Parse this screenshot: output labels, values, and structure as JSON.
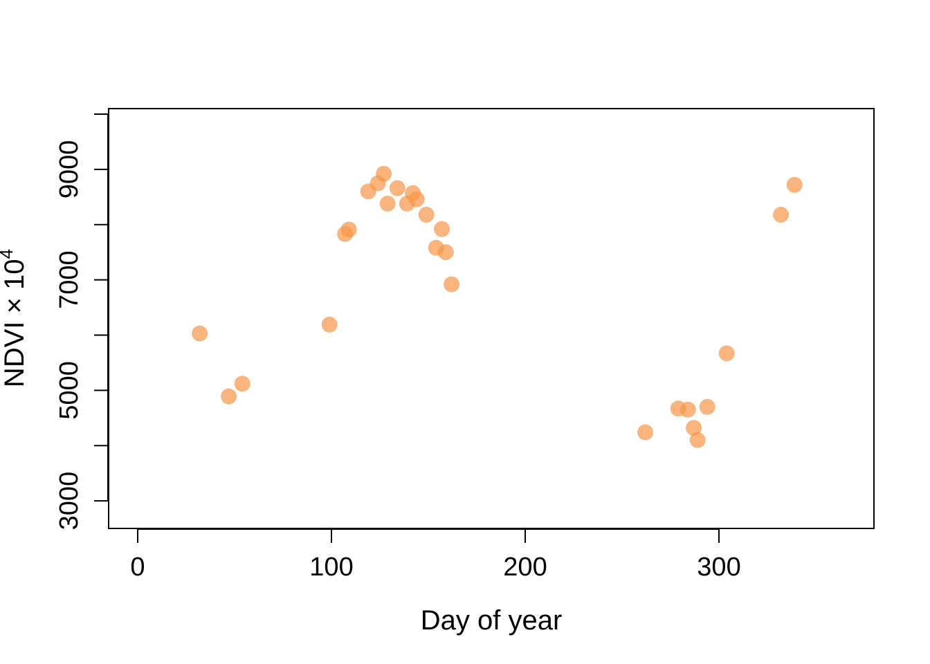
{
  "chart_data": {
    "type": "scatter",
    "title": "",
    "xlabel": "Day of year",
    "ylabel": {
      "main": "NDVI × 10",
      "superscript": "4"
    },
    "xlim": [
      -15,
      380
    ],
    "ylim": [
      2500,
      10100
    ],
    "x_ticks": [
      0,
      100,
      200,
      300
    ],
    "y_ticks": [
      3000,
      4000,
      5000,
      6000,
      7000,
      8000,
      9000,
      10000
    ],
    "y_tick_labels": [
      "3000",
      "",
      "5000",
      "",
      "7000",
      "",
      "9000",
      ""
    ],
    "grid": false,
    "marker_color": "#F79646",
    "marker_opacity": 0.7,
    "points": [
      {
        "x": 32,
        "y": 6030
      },
      {
        "x": 47,
        "y": 4890
      },
      {
        "x": 54,
        "y": 5120
      },
      {
        "x": 99,
        "y": 6190
      },
      {
        "x": 107,
        "y": 7830
      },
      {
        "x": 109,
        "y": 7910
      },
      {
        "x": 119,
        "y": 8600
      },
      {
        "x": 124,
        "y": 8750
      },
      {
        "x": 127,
        "y": 8920
      },
      {
        "x": 129,
        "y": 8380
      },
      {
        "x": 134,
        "y": 8660
      },
      {
        "x": 139,
        "y": 8380
      },
      {
        "x": 142,
        "y": 8570
      },
      {
        "x": 144,
        "y": 8460
      },
      {
        "x": 149,
        "y": 8180
      },
      {
        "x": 154,
        "y": 7580
      },
      {
        "x": 157,
        "y": 7920
      },
      {
        "x": 159,
        "y": 7500
      },
      {
        "x": 162,
        "y": 6920
      },
      {
        "x": 262,
        "y": 4240
      },
      {
        "x": 279,
        "y": 4670
      },
      {
        "x": 284,
        "y": 4650
      },
      {
        "x": 287,
        "y": 4320
      },
      {
        "x": 289,
        "y": 4100
      },
      {
        "x": 294,
        "y": 4700
      },
      {
        "x": 304,
        "y": 5670
      },
      {
        "x": 332,
        "y": 8180
      },
      {
        "x": 339,
        "y": 8720
      }
    ]
  }
}
